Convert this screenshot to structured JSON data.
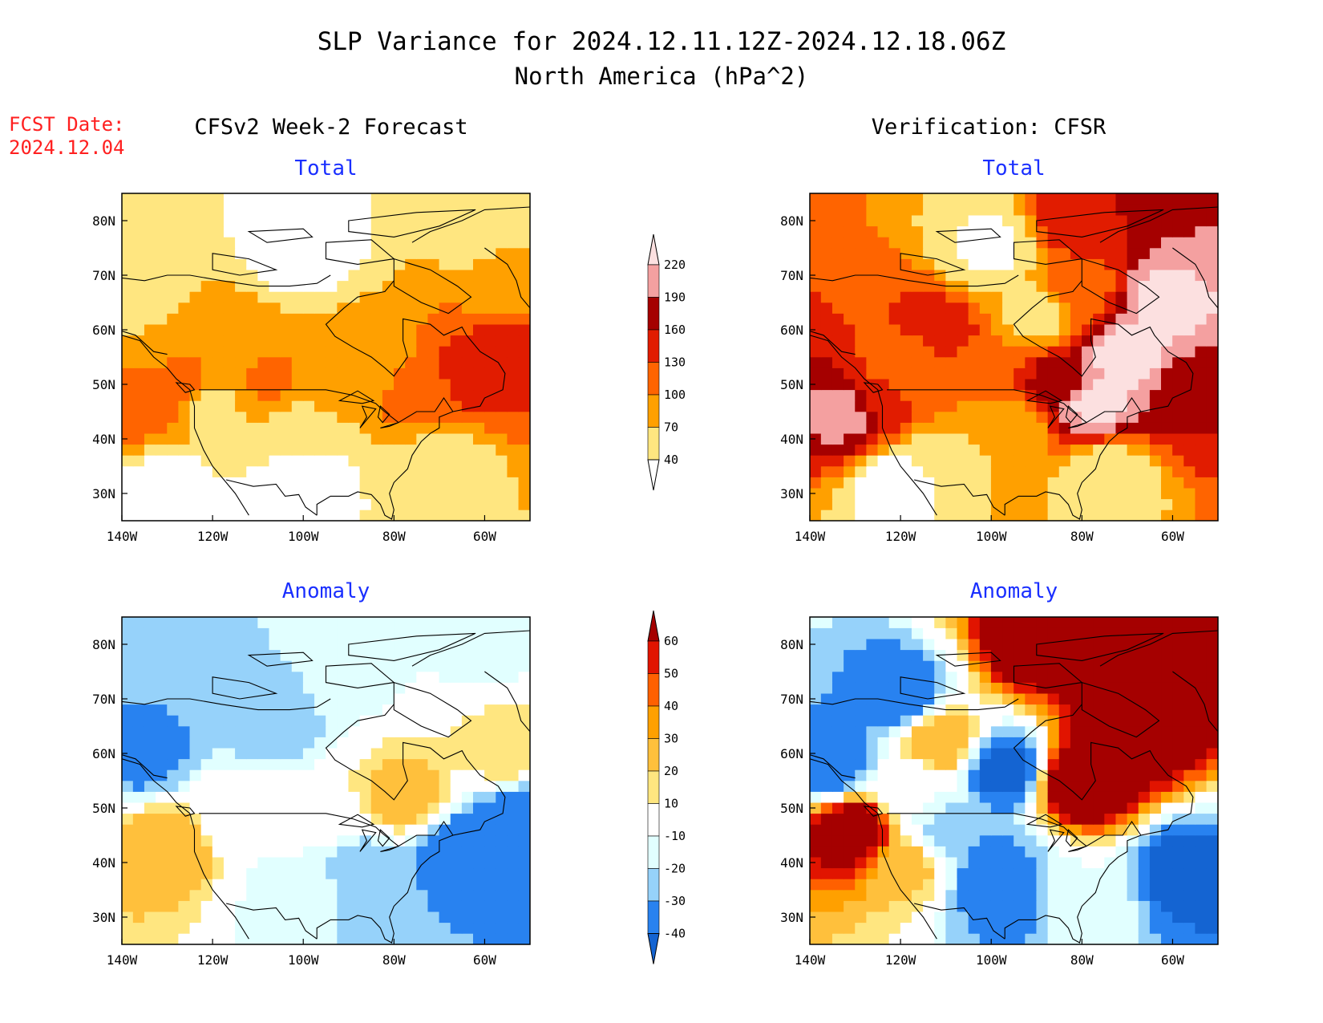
{
  "title": "SLP Variance for 2024.12.11.12Z-2024.12.18.06Z",
  "subtitle": "North America (hPa^2)",
  "fcst_label": "FCST Date:",
  "fcst_date": "2024.12.04",
  "columns": [
    "CFSv2 Week-2 Forecast",
    "Verification: CFSR"
  ],
  "colors": {
    "title": "#000000",
    "fcst": "#ff2020",
    "panel_title": "#1a2fff"
  },
  "chart_data": [
    {
      "type": "heatmap",
      "column": "CFSv2 Week-2 Forecast",
      "title": "Total",
      "x_ticks": [
        "140W",
        "120W",
        "100W",
        "80W",
        "60W"
      ],
      "y_ticks": [
        "30N",
        "40N",
        "50N",
        "60N",
        "70N",
        "80N"
      ],
      "xlim": [
        -140,
        -50
      ],
      "ylim": [
        25,
        85
      ],
      "grid_points": [
        {
          "lon": -135,
          "lat": 47,
          "v": 120
        },
        {
          "lon": -128,
          "lat": 50,
          "v": 110
        },
        {
          "lon": -115,
          "lat": 56,
          "v": 90
        },
        {
          "lon": -108,
          "lat": 51,
          "v": 105
        },
        {
          "lon": -120,
          "lat": 45,
          "v": 60
        },
        {
          "lon": -95,
          "lat": 50,
          "v": 80
        },
        {
          "lon": -100,
          "lat": 42,
          "v": 55
        },
        {
          "lon": -85,
          "lat": 55,
          "v": 85
        },
        {
          "lon": -75,
          "lat": 48,
          "v": 110
        },
        {
          "lon": -62,
          "lat": 52,
          "v": 145
        },
        {
          "lon": -55,
          "lat": 56,
          "v": 135
        },
        {
          "lon": -55,
          "lat": 70,
          "v": 75
        },
        {
          "lon": -60,
          "lat": 78,
          "v": 60
        },
        {
          "lon": -140,
          "lat": 68,
          "v": 45
        },
        {
          "lon": -100,
          "lat": 75,
          "v": 20
        },
        {
          "lon": -100,
          "lat": 32,
          "v": 20
        },
        {
          "lon": -130,
          "lat": 30,
          "v": 15
        },
        {
          "lon": -70,
          "lat": 35,
          "v": 50
        },
        {
          "lon": -135,
          "lat": 58,
          "v": 70
        }
      ]
    },
    {
      "type": "heatmap",
      "column": "Verification: CFSR",
      "title": "Total",
      "x_ticks": [
        "140W",
        "120W",
        "100W",
        "80W",
        "60W"
      ],
      "y_ticks": [
        "30N",
        "40N",
        "50N",
        "60N",
        "70N",
        "80N"
      ],
      "xlim": [
        -140,
        -50
      ],
      "ylim": [
        25,
        85
      ],
      "grid_points": [
        {
          "lon": -132,
          "lat": 45,
          "v": 205
        },
        {
          "lon": -125,
          "lat": 47,
          "v": 150
        },
        {
          "lon": -112,
          "lat": 59,
          "v": 150
        },
        {
          "lon": -115,
          "lat": 55,
          "v": 115
        },
        {
          "lon": -105,
          "lat": 50,
          "v": 100
        },
        {
          "lon": -120,
          "lat": 52,
          "v": 105
        },
        {
          "lon": -90,
          "lat": 63,
          "v": 60
        },
        {
          "lon": -80,
          "lat": 68,
          "v": 120
        },
        {
          "lon": -80,
          "lat": 80,
          "v": 150
        },
        {
          "lon": -60,
          "lat": 83,
          "v": 190
        },
        {
          "lon": -62,
          "lat": 65,
          "v": 230
        },
        {
          "lon": -70,
          "lat": 55,
          "v": 235
        },
        {
          "lon": -78,
          "lat": 47,
          "v": 230
        },
        {
          "lon": -85,
          "lat": 50,
          "v": 170
        },
        {
          "lon": -55,
          "lat": 48,
          "v": 160
        },
        {
          "lon": -95,
          "lat": 42,
          "v": 85
        },
        {
          "lon": -100,
          "lat": 75,
          "v": 35
        },
        {
          "lon": -120,
          "lat": 32,
          "v": 20
        },
        {
          "lon": -110,
          "lat": 36,
          "v": 55
        },
        {
          "lon": -75,
          "lat": 33,
          "v": 40
        }
      ]
    },
    {
      "type": "heatmap",
      "column": "CFSv2 Week-2 Forecast",
      "title": "Anomaly",
      "x_ticks": [
        "140W",
        "120W",
        "100W",
        "80W",
        "60W"
      ],
      "y_ticks": [
        "30N",
        "40N",
        "50N",
        "60N",
        "70N",
        "80N"
      ],
      "xlim": [
        -140,
        -50
      ],
      "ylim": [
        25,
        85
      ],
      "grid_points": [
        {
          "lon": -130,
          "lat": 43,
          "v": 30
        },
        {
          "lon": -78,
          "lat": 52,
          "v": 25
        },
        {
          "lon": -55,
          "lat": 61,
          "v": 20
        },
        {
          "lon": -135,
          "lat": 60,
          "v": -35
        },
        {
          "lon": -108,
          "lat": 67,
          "v": -30
        },
        {
          "lon": -125,
          "lat": 80,
          "v": -20
        },
        {
          "lon": -65,
          "lat": 42,
          "v": -40
        },
        {
          "lon": -52,
          "lat": 48,
          "v": -40
        },
        {
          "lon": -85,
          "lat": 38,
          "v": -28
        },
        {
          "lon": -100,
          "lat": 35,
          "v": -18
        },
        {
          "lon": -100,
          "lat": 48,
          "v": -5
        },
        {
          "lon": -115,
          "lat": 50,
          "v": -5
        },
        {
          "lon": -90,
          "lat": 75,
          "v": -12
        },
        {
          "lon": -60,
          "lat": 78,
          "v": -12
        }
      ]
    },
    {
      "type": "heatmap",
      "column": "Verification: CFSR",
      "title": "Anomaly",
      "x_ticks": [
        "140W",
        "120W",
        "100W",
        "80W",
        "60W"
      ],
      "y_ticks": [
        "30N",
        "40N",
        "50N",
        "60N",
        "70N",
        "80N"
      ],
      "xlim": [
        -140,
        -50
      ],
      "ylim": [
        25,
        85
      ],
      "grid_points": [
        {
          "lon": -130,
          "lat": 46,
          "v": 75
        },
        {
          "lon": -112,
          "lat": 62,
          "v": 30
        },
        {
          "lon": -118,
          "lat": 40,
          "v": 25
        },
        {
          "lon": -70,
          "lat": 65,
          "v": 80
        },
        {
          "lon": -80,
          "lat": 55,
          "v": 80
        },
        {
          "lon": -90,
          "lat": 80,
          "v": 70
        },
        {
          "lon": -60,
          "lat": 82,
          "v": 75
        },
        {
          "lon": -135,
          "lat": 58,
          "v": -40
        },
        {
          "lon": -120,
          "lat": 70,
          "v": -40
        },
        {
          "lon": -97,
          "lat": 57,
          "v": -45
        },
        {
          "lon": -100,
          "lat": 38,
          "v": -40
        },
        {
          "lon": -95,
          "lat": 33,
          "v": -35
        },
        {
          "lon": -57,
          "lat": 38,
          "v": -45
        },
        {
          "lon": -110,
          "lat": 45,
          "v": -25
        },
        {
          "lon": -118,
          "lat": 53,
          "v": -10
        },
        {
          "lon": -80,
          "lat": 33,
          "v": -10
        }
      ]
    }
  ],
  "colorbars": [
    {
      "name": "total",
      "labels": [
        "40",
        "70",
        "100",
        "130",
        "160",
        "190",
        "220"
      ],
      "colors": [
        "#ffffff",
        "#ffe680",
        "#ffa000",
        "#ff6400",
        "#e11c00",
        "#a50000",
        "#f4a0a0",
        "#fce0e0"
      ]
    },
    {
      "name": "anomaly",
      "labels": [
        "-40",
        "-30",
        "-20",
        "-10",
        "10",
        "20",
        "30",
        "40",
        "50",
        "60"
      ],
      "colors": [
        "#1464d2",
        "#2882f0",
        "#96d2fa",
        "#e1ffff",
        "#ffffff",
        "#ffe680",
        "#ffc03c",
        "#ffa000",
        "#ff6000",
        "#e11400",
        "#a50000"
      ]
    }
  ]
}
